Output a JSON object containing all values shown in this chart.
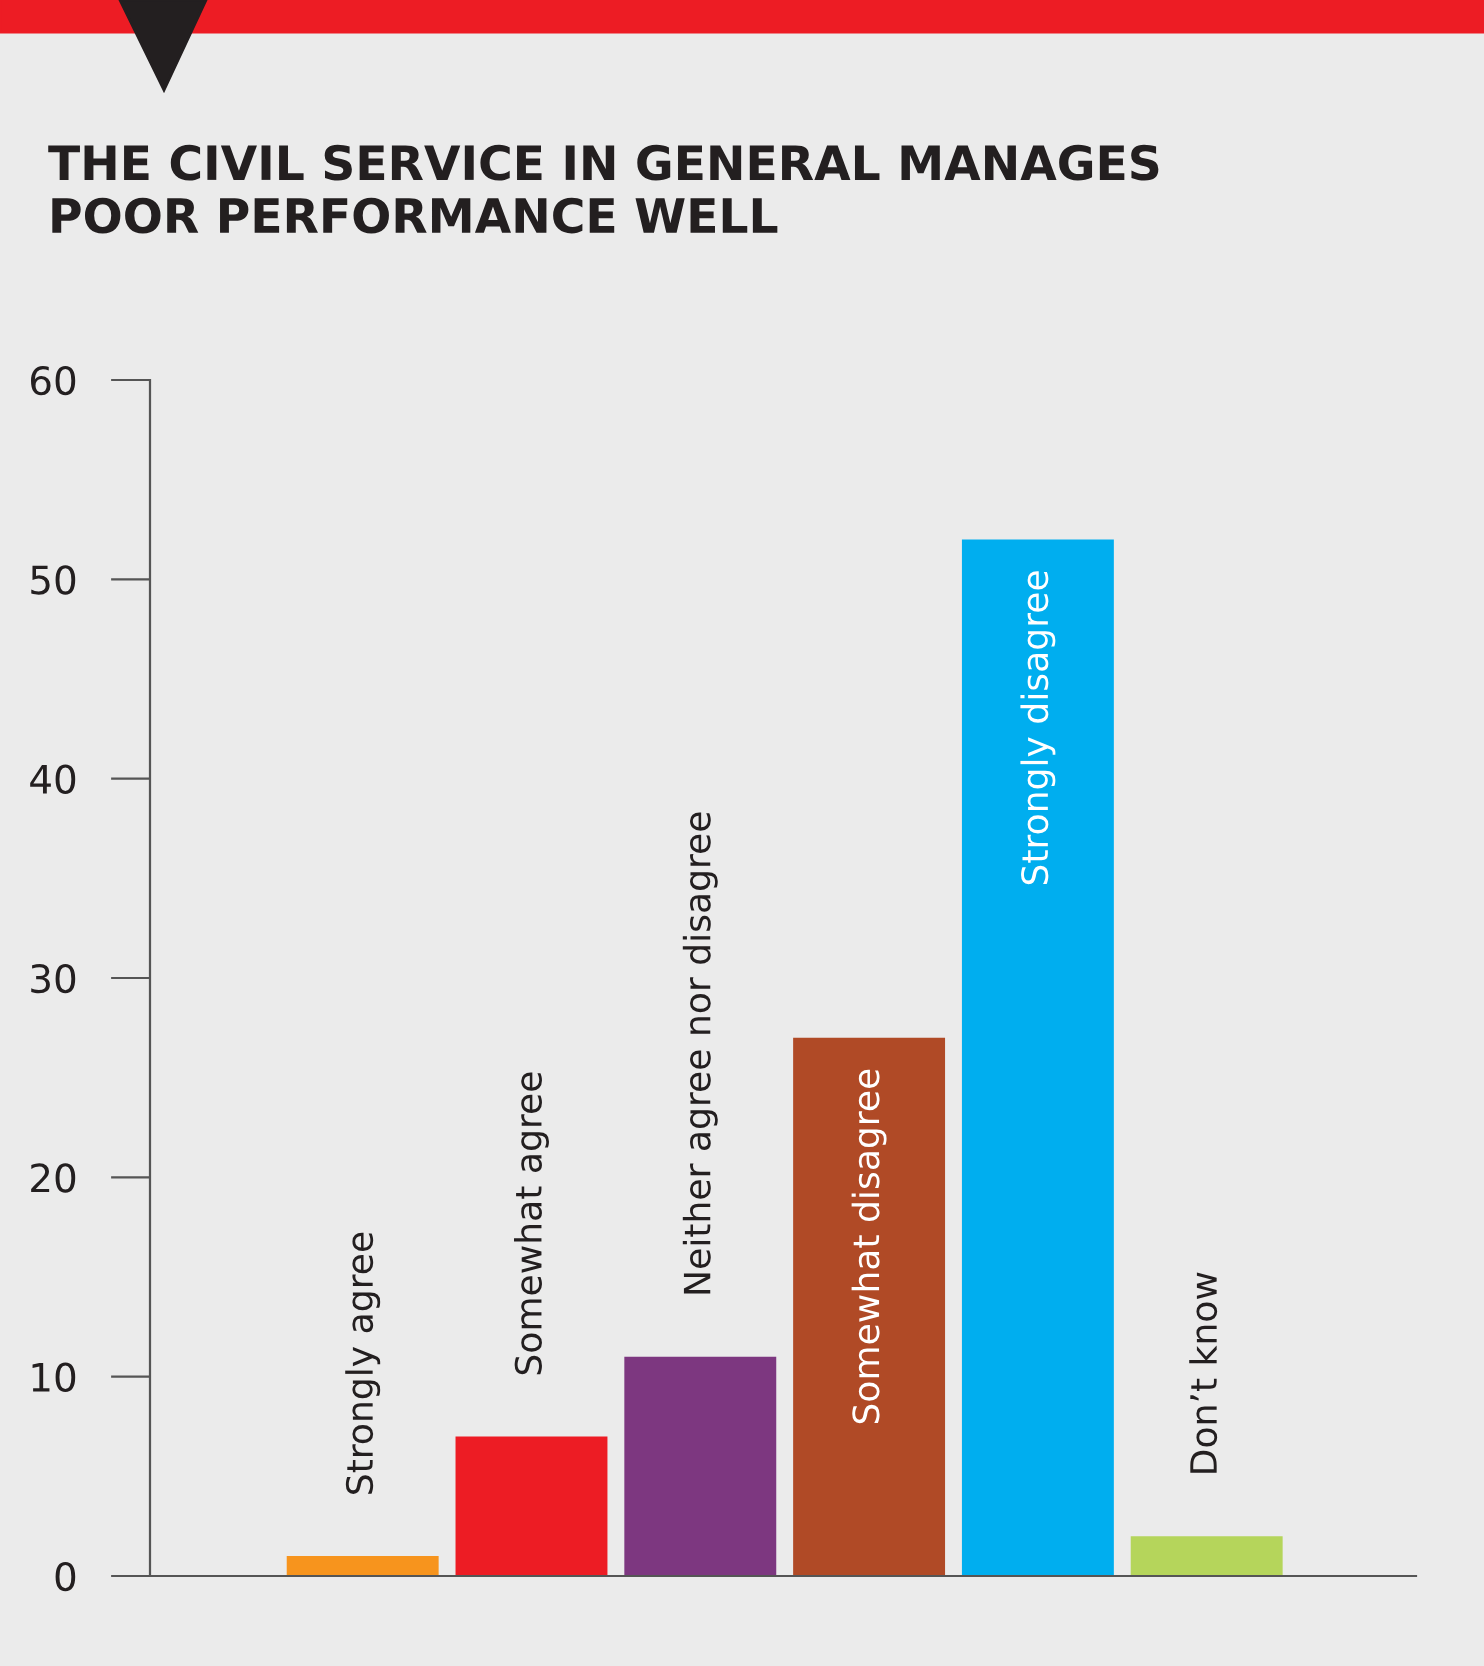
{
  "chart_data": {
    "type": "bar",
    "title": "THE CIVIL SERVICE IN GENERAL MANAGES\nPOOR PERFORMANCE WELL",
    "categories": [
      "Strongly agree",
      "Somewhat agree",
      "Neither agree nor disagree",
      "Somewhat disagree",
      "Strongly disagree",
      "Don’t know"
    ],
    "values": [
      1,
      7,
      11,
      27,
      52,
      2
    ],
    "colors": [
      "#f7941d",
      "#ed1c24",
      "#7d3780",
      "#b04a26",
      "#00aeef",
      "#b5d55b"
    ],
    "ylim": [
      0,
      60
    ],
    "yticks": [
      0,
      10,
      20,
      30,
      40,
      50,
      60
    ],
    "grid": false,
    "legend": false
  }
}
